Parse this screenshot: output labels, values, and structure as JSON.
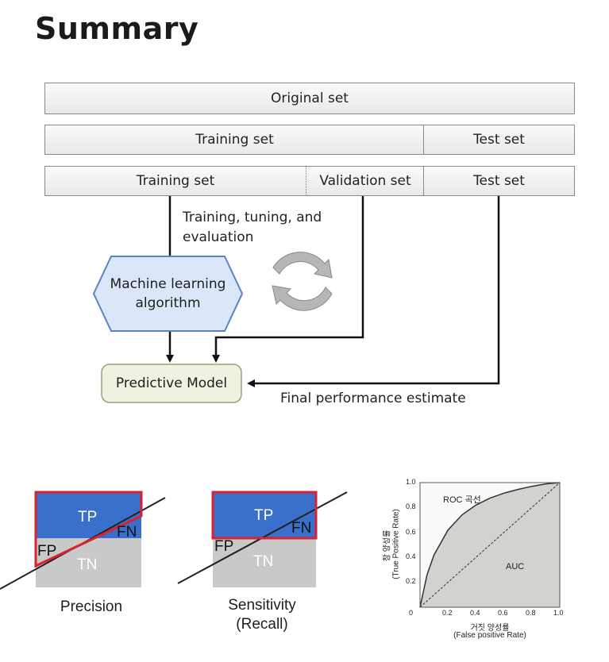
{
  "title": "Summary",
  "rows": {
    "original": "Original set",
    "split1": {
      "training": "Training set",
      "test": "Test set"
    },
    "split2": {
      "training": "Training set",
      "validation": "Validation set",
      "test": "Test set"
    }
  },
  "flow": {
    "loop_caption_line1": "Training, tuning, and",
    "loop_caption_line2": "evaluation",
    "algorithm_line1": "Machine learning",
    "algorithm_line2": "algorithm",
    "model": "Predictive Model",
    "final_estimate": "Final performance estimate"
  },
  "confusion": {
    "precision": {
      "tp": "TP",
      "fn": "FN",
      "fp": "FP",
      "tn": "TN",
      "caption": "Precision"
    },
    "recall": {
      "tp": "TP",
      "fn": "FN",
      "fp": "FP",
      "tn": "TN",
      "caption_line1": "Sensitivity",
      "caption_line2": "(Recall)"
    }
  },
  "chart_data": {
    "type": "line",
    "title": "ROC 곡선",
    "area_label": "AUC",
    "xlabel_ko": "거짓 양성률",
    "xlabel_en": "(False positive Rate)",
    "ylabel_ko": "참 양성률",
    "ylabel_en": "(True Positive Rate)",
    "xlim": [
      0,
      1.0
    ],
    "ylim": [
      0,
      1.0
    ],
    "x_ticks": [
      "0",
      "0.2",
      "0.4",
      "0.6",
      "0.8",
      "1.0"
    ],
    "y_ticks": [
      "0",
      "0.2",
      "0.4",
      "0.6",
      "0.8",
      "1.0"
    ],
    "series": [
      {
        "x": [
          0,
          0.05,
          0.1,
          0.2,
          0.3,
          0.4,
          0.5,
          0.6,
          0.7,
          0.8,
          0.9,
          1.0
        ],
        "y": [
          0,
          0.26,
          0.42,
          0.62,
          0.74,
          0.82,
          0.875,
          0.915,
          0.945,
          0.97,
          0.99,
          1.0
        ]
      },
      {
        "x": [
          0,
          1.0
        ],
        "y": [
          0,
          1.0
        ]
      }
    ],
    "colors": {
      "area": "#d2d2ce",
      "curve": "#333333",
      "diagonal": "#333333"
    }
  },
  "colors": {
    "tp": "#3a6fcc",
    "tn": "#c9c9c9",
    "precision_outline": "#d8222f",
    "hexagon": "#dbe7f8",
    "hexagon_border": "#5b82c4",
    "model_box": "#eef2e0",
    "model_border": "#9aa07a"
  }
}
